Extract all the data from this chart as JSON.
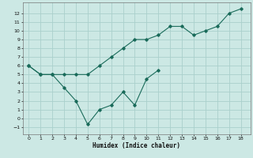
{
  "line1_x": [
    0,
    1,
    2,
    3,
    4,
    5,
    6,
    7,
    8,
    9,
    10,
    11,
    12,
    13,
    14,
    15,
    16,
    17,
    18
  ],
  "line1_y": [
    6,
    5,
    5,
    5,
    5,
    5,
    6,
    7,
    8,
    9,
    9,
    9.5,
    10.5,
    10.5,
    9.5,
    10,
    10.5,
    12,
    12.5
  ],
  "line2_x": [
    0,
    1,
    2,
    3,
    4,
    5,
    6,
    7,
    8,
    9,
    10,
    11
  ],
  "line2_y": [
    6,
    5,
    5,
    3.5,
    2,
    -0.7,
    1,
    1.5,
    3,
    1.5,
    4.5,
    5.5
  ],
  "line_color": "#1a6b5a",
  "bg_color": "#cce8e4",
  "grid_color": "#aad0cc",
  "xlabel": "Humidex (Indice chaleur)",
  "xlim": [
    -0.5,
    18.8
  ],
  "ylim": [
    -1.8,
    13.2
  ],
  "xticks": [
    0,
    1,
    2,
    3,
    4,
    5,
    6,
    7,
    8,
    9,
    10,
    11,
    12,
    13,
    14,
    15,
    16,
    17,
    18
  ],
  "yticks": [
    -1,
    0,
    1,
    2,
    3,
    4,
    5,
    6,
    7,
    8,
    9,
    10,
    11,
    12
  ]
}
